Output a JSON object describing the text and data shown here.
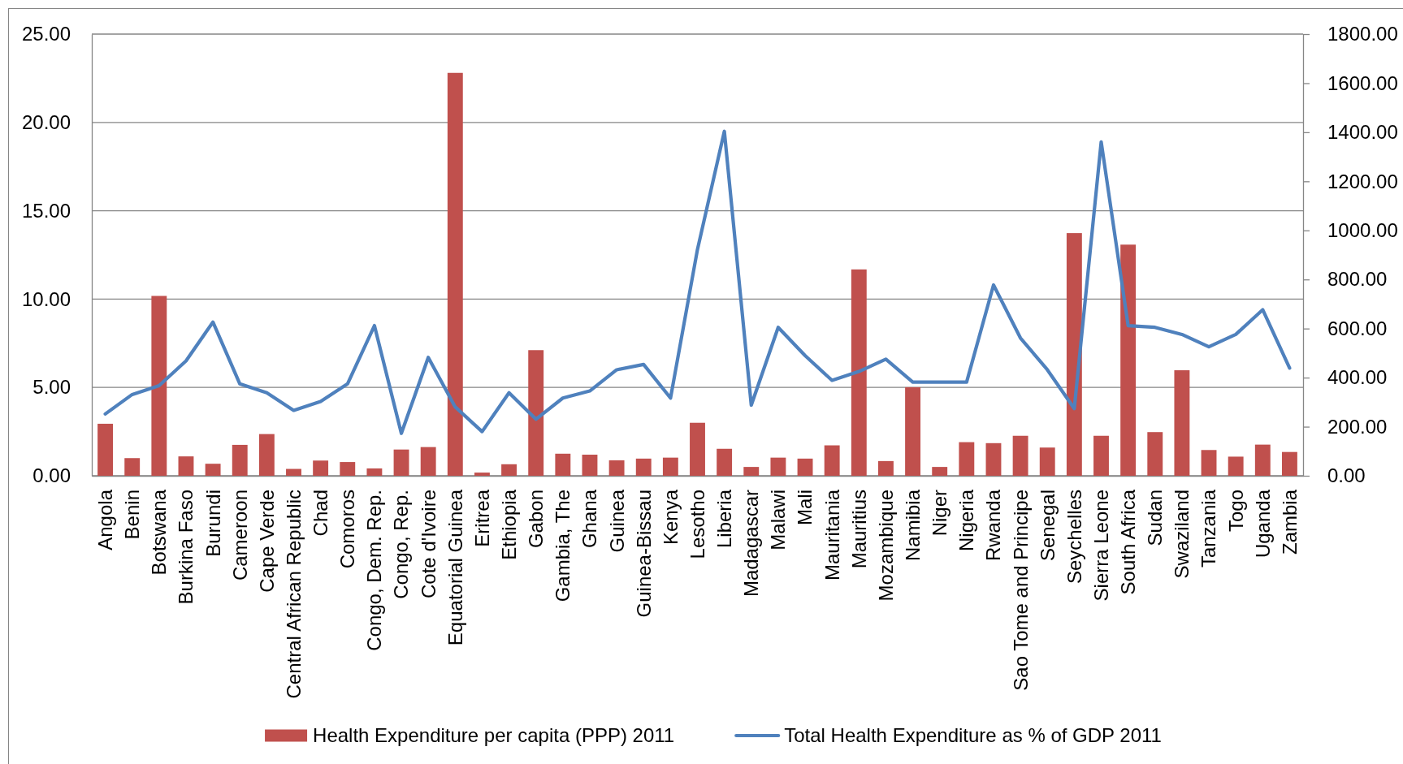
{
  "chart_data": {
    "type": "bar",
    "categories": [
      "Angola",
      "Benin",
      "Botswana",
      "Burkina Faso",
      "Burundi",
      "Cameroon",
      "Cape Verde",
      "Central African Republic",
      "Chad",
      "Comoros",
      "Congo, Dem. Rep.",
      "Congo, Rep.",
      "Cote d'Ivoire",
      "Equatorial Guinea",
      "Eritrea",
      "Ethiopia",
      "Gabon",
      "Gambia, The",
      "Ghana",
      "Guinea",
      "Guinea-Bissau",
      "Kenya",
      "Lesotho",
      "Liberia",
      "Madagascar",
      "Malawi",
      "Mali",
      "Mauritania",
      "Mauritius",
      "Mozambique",
      "Namibia",
      "Niger",
      "Nigeria",
      "Rwanda",
      "Sao Tome and Principe",
      "Senegal",
      "Seychelles",
      "Sierra Leone",
      "South Africa",
      "Sudan",
      "Swaziland",
      "Tanzania",
      "Togo",
      "Uganda",
      "Zambia"
    ],
    "series": [
      {
        "name": "Health Expenditure per capita (PPP) 2011",
        "axis": "y2",
        "color": "#c0504d",
        "values": [
          212,
          72,
          733,
          79,
          49,
          126,
          170,
          28,
          62,
          56,
          30,
          107,
          117,
          1642,
          13,
          47,
          512,
          90,
          86,
          63,
          70,
          74,
          216,
          110,
          36,
          74,
          70,
          124,
          841,
          60,
          361,
          36,
          137,
          133,
          163,
          115,
          989,
          163,
          942,
          178,
          430,
          105,
          78,
          127,
          97
        ]
      },
      {
        "name": "Total Health Expenditure as % of GDP 2011",
        "type": "line",
        "color": "#4f81bd",
        "values": [
          3.5,
          4.6,
          5.1,
          6.5,
          8.7,
          5.2,
          4.7,
          3.7,
          4.2,
          5.2,
          8.5,
          2.4,
          6.7,
          3.9,
          2.5,
          4.7,
          3.2,
          4.4,
          4.8,
          6.0,
          6.3,
          4.4,
          12.8,
          19.5,
          4.0,
          8.4,
          6.8,
          5.4,
          5.9,
          6.6,
          5.3,
          5.3,
          5.3,
          10.8,
          7.8,
          6.0,
          3.8,
          18.9,
          8.5,
          8.4,
          8.0,
          7.3,
          8.0,
          9.4,
          6.1
        ]
      }
    ],
    "ylim": [
      0,
      25
    ],
    "yticks": [
      {
        "value": 0,
        "label": "0.00"
      },
      {
        "value": 5,
        "label": "5.00"
      },
      {
        "value": 10,
        "label": "10.00"
      },
      {
        "value": 15,
        "label": "15.00"
      },
      {
        "value": 20,
        "label": "20.00"
      },
      {
        "value": 25,
        "label": "25.00"
      }
    ],
    "y2lim": [
      0,
      1800
    ],
    "y2ticks": [
      {
        "value": 0,
        "label": "0.00"
      },
      {
        "value": 200,
        "label": "200.00"
      },
      {
        "value": 400,
        "label": "400.00"
      },
      {
        "value": 600,
        "label": "600.00"
      },
      {
        "value": 800,
        "label": "800.00"
      },
      {
        "value": 1000,
        "label": "1000.00"
      },
      {
        "value": 1200,
        "label": "1200.00"
      },
      {
        "value": 1400,
        "label": "1400.00"
      },
      {
        "value": 1600,
        "label": "1600.00"
      },
      {
        "value": 1800,
        "label": "1800.00"
      }
    ],
    "grid": "y",
    "legend": "bottom"
  }
}
